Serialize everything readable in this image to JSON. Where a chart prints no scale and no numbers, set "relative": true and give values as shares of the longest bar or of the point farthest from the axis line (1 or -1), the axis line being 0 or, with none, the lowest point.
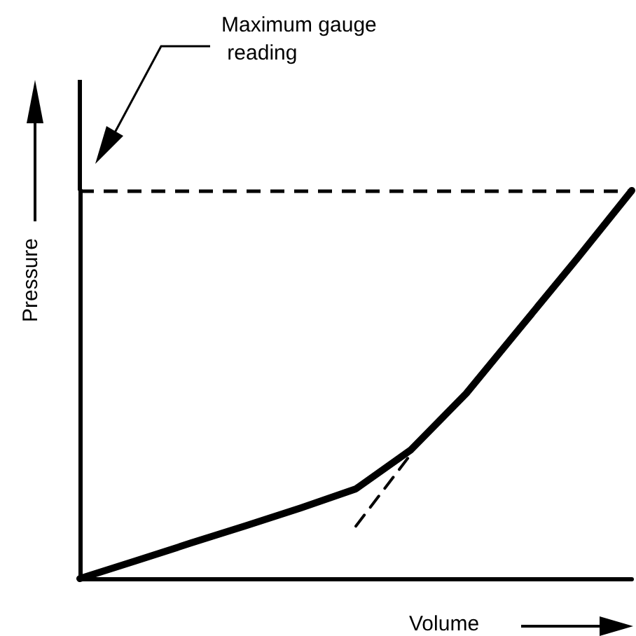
{
  "chart_data": {
    "type": "line",
    "relative": true,
    "xlabel": "Volume",
    "ylabel": "Pressure",
    "categories": [
      null,
      null,
      null,
      null,
      null,
      null,
      null,
      null,
      null,
      null,
      null
    ],
    "series": [
      {
        "color": "#000000",
        "line_style": "solid",
        "values": [
          0,
          0.045,
          0.091,
          0.136,
          0.182,
          0.231,
          0.332,
          0.477,
          0.65,
          0.823,
          1
        ]
      },
      {
        "color": "#000000",
        "line_style": "dashed",
        "values": [
          null,
          null,
          null,
          null,
          null,
          0.135,
          0.321,
          null,
          null,
          null,
          null
        ]
      }
    ],
    "ref_lines": [
      {
        "axis": "y",
        "value": 1,
        "label": "Maximum gauge reading",
        "line_style": "dashed",
        "color": "#000000"
      }
    ],
    "marker": "none",
    "grid": false
  }
}
